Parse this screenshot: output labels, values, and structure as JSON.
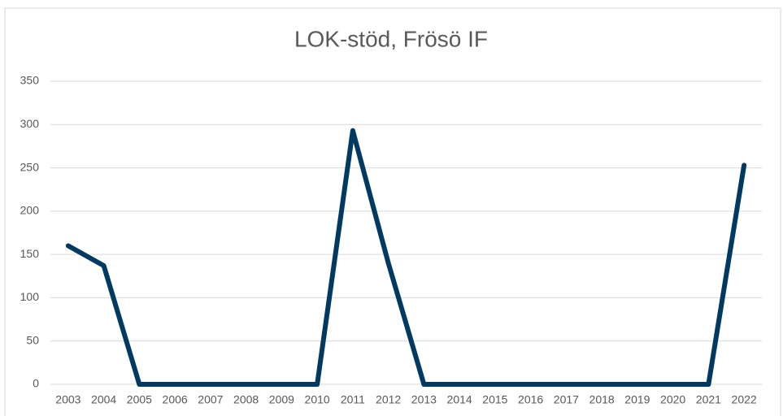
{
  "chart_data": {
    "type": "line",
    "title": "LOK-stöd, Frösö IF",
    "categories": [
      "2003",
      "2004",
      "2005",
      "2006",
      "2007",
      "2008",
      "2009",
      "2010",
      "2011",
      "2012",
      "2013",
      "2014",
      "2015",
      "2016",
      "2017",
      "2018",
      "2019",
      "2020",
      "2021",
      "2022"
    ],
    "values": [
      160,
      137,
      0,
      0,
      0,
      0,
      0,
      0,
      293,
      140,
      0,
      0,
      0,
      0,
      0,
      0,
      0,
      0,
      0,
      253
    ],
    "color": "#003a63",
    "ylim": [
      0,
      350
    ],
    "yticks": [
      0,
      50,
      100,
      150,
      200,
      250,
      300,
      350
    ],
    "grid": true
  }
}
